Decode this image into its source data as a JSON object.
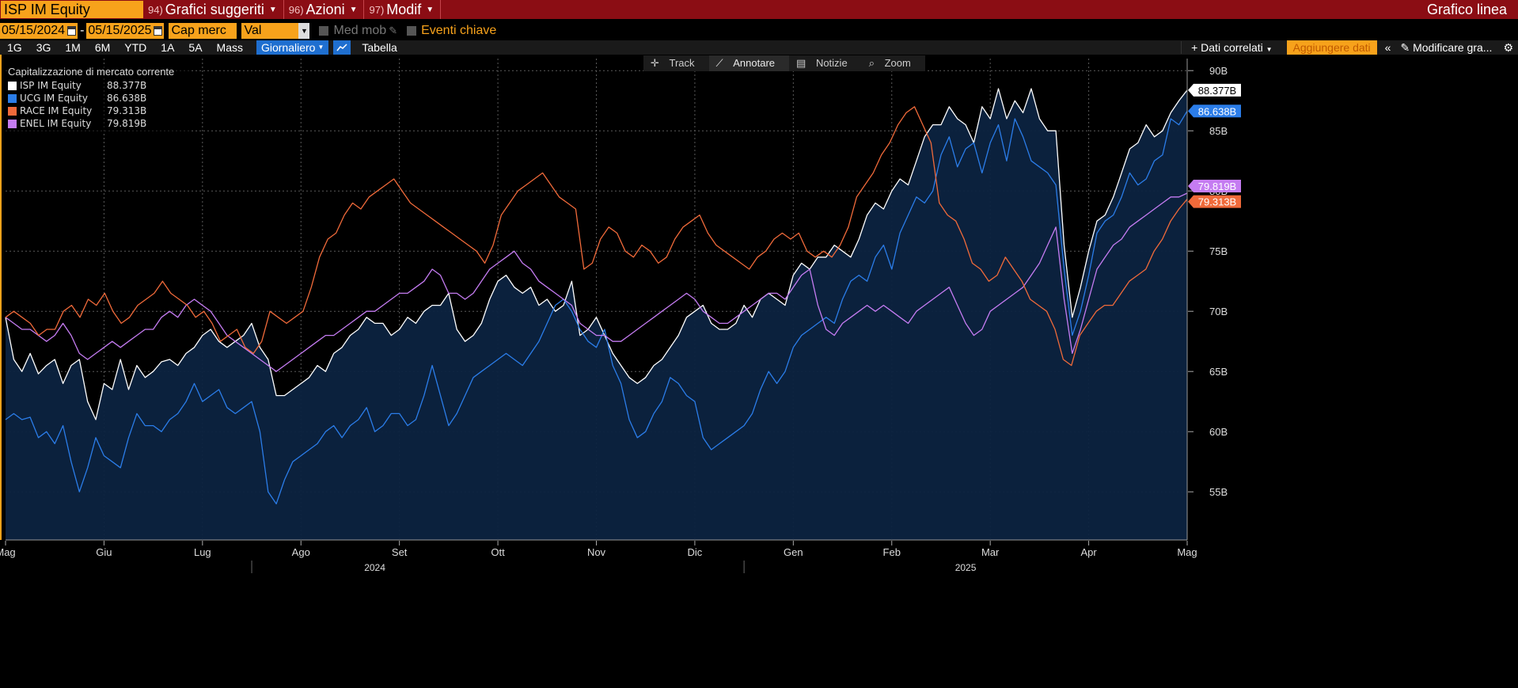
{
  "topbar": {
    "ticker": "ISP IM Equity",
    "menus": [
      {
        "num": "94)",
        "label": "Grafici suggeriti"
      },
      {
        "num": "96)",
        "label": "Azioni"
      },
      {
        "num": "97)",
        "label": "Modif"
      }
    ],
    "right_label": "Grafico linea"
  },
  "controls": {
    "start_date": "05/15/2024",
    "dash": "-",
    "end_date": "05/15/2025",
    "field": "Cap merc",
    "currency": "Val locale",
    "moving_avg": "Med mob",
    "key_events": "Eventi chiave"
  },
  "periods": [
    "1G",
    "3G",
    "1M",
    "6M",
    "YTD",
    "1A",
    "5A",
    "Mass"
  ],
  "frequency": "Giornaliero",
  "table_label": "Tabella",
  "right_tools": {
    "related": "+ Dati correlati",
    "add_data": "Aggiungere dati",
    "modify": "Modificare gra..."
  },
  "tools": [
    "Track",
    "Annotare",
    "Notizie",
    "Zoom"
  ],
  "legend": {
    "title": "Capitalizzazione di mercato corrente",
    "items": [
      {
        "name": "ISP IM Equity",
        "value": "88.377B",
        "color": "#ffffff"
      },
      {
        "name": "UCG IM Equity",
        "value": "86.638B",
        "color": "#2b7de9"
      },
      {
        "name": "RACE IM Equity",
        "value": "79.313B",
        "color": "#f06a3a"
      },
      {
        "name": "ENEL IM Equity",
        "value": "79.819B",
        "color": "#c57cf2"
      }
    ]
  },
  "colors": {
    "accent": "#f7a21b",
    "topbar": "#8b0d14",
    "area": "#0c2340"
  },
  "chart_data": {
    "type": "line",
    "ylim": [
      51,
      91
    ],
    "y_ticks": [
      55,
      60,
      65,
      70,
      75,
      80,
      85,
      90
    ],
    "y_tick_suffix": "B",
    "x_month_labels": [
      "Mag",
      "Giu",
      "Lug",
      "Ago",
      "Set",
      "Ott",
      "Nov",
      "Dic",
      "Gen",
      "Feb",
      "Mar",
      "Apr",
      "Mag"
    ],
    "x_month_positions": [
      0,
      12,
      24,
      36,
      48,
      60,
      72,
      84,
      96,
      108,
      120,
      132,
      144
    ],
    "x_max": 144,
    "year_labels": [
      "2024",
      "2025"
    ],
    "year_positions": [
      45,
      117
    ],
    "year_divider_positions": [
      30,
      90
    ],
    "series": [
      {
        "name": "ISP IM Equity",
        "color": "#ffffff",
        "fill": true,
        "last_label": "88.377B",
        "values": [
          69.5,
          66.0,
          65.0,
          66.5,
          64.8,
          65.5,
          66.0,
          64.0,
          65.5,
          66.0,
          62.5,
          61.0,
          64.0,
          63.5,
          66.0,
          63.5,
          65.5,
          64.5,
          65.0,
          65.8,
          66.0,
          65.5,
          66.5,
          67.0,
          68.0,
          68.5,
          67.5,
          67.0,
          67.5,
          68.0,
          69.0,
          67.0,
          66.0,
          63.0,
          63.0,
          63.5,
          64.0,
          64.5,
          65.5,
          65.0,
          66.5,
          67.0,
          68.0,
          68.5,
          69.5,
          69.0,
          69.0,
          68.0,
          68.5,
          69.5,
          69.0,
          70.0,
          70.5,
          70.5,
          71.5,
          68.5,
          67.5,
          68.0,
          69.0,
          71.0,
          72.5,
          73.0,
          72.0,
          71.5,
          72.0,
          70.5,
          71.0,
          70.0,
          70.5,
          72.5,
          68.0,
          68.5,
          69.5,
          68.0,
          66.5,
          65.5,
          64.5,
          64.0,
          64.5,
          65.5,
          66.0,
          67.0,
          68.0,
          69.5,
          70.0,
          70.5,
          69.0,
          68.5,
          68.5,
          69.0,
          70.5,
          69.5,
          71.0,
          71.5,
          71.0,
          70.5,
          73.0,
          74.0,
          73.5,
          74.5,
          74.5,
          75.5,
          75.0,
          74.5,
          76.0,
          78.0,
          79.0,
          78.5,
          80.0,
          81.0,
          80.5,
          82.5,
          84.5,
          85.5,
          85.5,
          87.0,
          86.0,
          85.5,
          84.0,
          87.0,
          86.0,
          88.5,
          86.0,
          87.5,
          86.5,
          88.5,
          86.0,
          85.0,
          85.0,
          75.5,
          69.5,
          72.0,
          75.0,
          77.5,
          78.0,
          79.5,
          81.5,
          83.5,
          84.0,
          85.5,
          84.5,
          85.0,
          86.5,
          87.5,
          88.377
        ]
      },
      {
        "name": "UCG IM Equity",
        "color": "#2b7de9",
        "fill": false,
        "last_label": "86.638B",
        "values": [
          61.0,
          61.5,
          61.0,
          61.2,
          59.5,
          60.0,
          59.0,
          60.5,
          57.5,
          55.0,
          57.0,
          59.5,
          58.0,
          57.5,
          57.0,
          59.5,
          61.5,
          60.5,
          60.5,
          60.0,
          61.0,
          61.5,
          62.5,
          64.0,
          62.5,
          63.0,
          63.5,
          62.0,
          61.5,
          62.0,
          62.5,
          60.0,
          55.0,
          54.0,
          56.0,
          57.5,
          58.0,
          58.5,
          59.0,
          60.0,
          60.5,
          59.5,
          60.5,
          61.0,
          62.0,
          60.0,
          60.5,
          61.5,
          61.5,
          60.5,
          61.0,
          63.0,
          65.5,
          63.0,
          60.5,
          61.5,
          63.0,
          64.5,
          65.0,
          65.5,
          66.0,
          66.5,
          66.0,
          65.5,
          66.5,
          67.5,
          69.0,
          70.5,
          71.0,
          70.0,
          68.5,
          67.5,
          67.0,
          68.5,
          65.5,
          64.0,
          61.0,
          59.5,
          60.0,
          61.5,
          62.5,
          64.5,
          64.0,
          63.0,
          62.5,
          59.5,
          58.5,
          59.0,
          59.5,
          60.0,
          60.5,
          61.5,
          63.5,
          65.0,
          64.0,
          65.0,
          67.0,
          68.0,
          68.5,
          69.0,
          69.5,
          69.0,
          71.0,
          72.5,
          73.0,
          72.5,
          74.5,
          75.5,
          73.5,
          76.5,
          78.0,
          79.5,
          79.0,
          80.0,
          83.0,
          84.5,
          82.0,
          83.5,
          84.0,
          81.5,
          84.0,
          85.5,
          82.5,
          86.0,
          84.5,
          82.5,
          82.0,
          81.5,
          80.5,
          73.5,
          68.0,
          70.0,
          73.0,
          76.5,
          77.5,
          78.0,
          79.5,
          81.5,
          80.5,
          81.0,
          82.5,
          83.0,
          86.0,
          85.5,
          86.638
        ]
      },
      {
        "name": "RACE IM Equity",
        "color": "#f06a3a",
        "fill": false,
        "last_label": "79.313B",
        "values": [
          69.5,
          70.0,
          69.5,
          69.0,
          68.0,
          68.5,
          68.5,
          70.0,
          70.5,
          69.5,
          71.0,
          70.5,
          71.5,
          70.0,
          69.0,
          69.5,
          70.5,
          71.0,
          71.5,
          72.5,
          71.5,
          71.0,
          70.5,
          69.5,
          70.0,
          69.0,
          67.5,
          68.0,
          68.5,
          67.0,
          66.5,
          67.5,
          70.0,
          69.5,
          69.0,
          69.5,
          70.0,
          72.0,
          74.5,
          76.0,
          76.5,
          78.0,
          79.0,
          78.5,
          79.5,
          80.0,
          80.5,
          81.0,
          80.0,
          79.0,
          78.5,
          78.0,
          77.5,
          77.0,
          76.5,
          76.0,
          75.5,
          75.0,
          74.0,
          75.5,
          78.0,
          79.0,
          80.0,
          80.5,
          81.0,
          81.5,
          80.5,
          79.5,
          79.0,
          78.5,
          73.5,
          74.0,
          76.0,
          77.0,
          76.5,
          75.0,
          74.5,
          75.5,
          75.0,
          74.0,
          74.5,
          76.0,
          77.0,
          77.5,
          78.0,
          76.5,
          75.5,
          75.0,
          74.5,
          74.0,
          73.5,
          74.5,
          75.0,
          76.0,
          76.5,
          76.0,
          76.5,
          75.0,
          74.5,
          75.0,
          74.5,
          75.5,
          77.0,
          79.5,
          80.5,
          81.5,
          83.0,
          84.0,
          85.5,
          86.5,
          87.0,
          85.5,
          84.0,
          79.0,
          78.0,
          77.5,
          76.0,
          74.0,
          73.5,
          72.5,
          73.0,
          74.5,
          73.5,
          72.5,
          71.0,
          70.5,
          70.0,
          68.5,
          66.0,
          65.5,
          68.0,
          69.0,
          70.0,
          70.5,
          70.5,
          71.5,
          72.5,
          73.0,
          73.5,
          75.0,
          76.0,
          77.5,
          78.5,
          79.313
        ]
      },
      {
        "name": "ENEL IM Equity",
        "color": "#c57cf2",
        "fill": false,
        "last_label": "79.819B",
        "values": [
          69.5,
          69.0,
          68.5,
          68.5,
          68.0,
          67.5,
          68.0,
          69.0,
          68.0,
          66.5,
          66.0,
          66.5,
          67.0,
          67.5,
          67.0,
          67.5,
          68.0,
          68.5,
          68.5,
          69.5,
          70.0,
          69.5,
          70.5,
          71.0,
          70.5,
          70.0,
          69.0,
          68.0,
          67.5,
          67.0,
          66.5,
          66.0,
          65.5,
          65.0,
          65.5,
          66.0,
          66.5,
          67.0,
          67.5,
          68.0,
          68.0,
          68.5,
          69.0,
          69.5,
          70.0,
          70.0,
          70.5,
          71.0,
          71.5,
          71.5,
          72.0,
          72.5,
          73.5,
          73.0,
          71.5,
          71.5,
          71.0,
          71.5,
          72.5,
          73.5,
          74.0,
          74.5,
          75.0,
          74.0,
          73.5,
          72.5,
          72.0,
          71.5,
          71.0,
          70.5,
          69.0,
          68.5,
          68.0,
          68.0,
          67.5,
          67.5,
          68.0,
          68.5,
          69.0,
          69.5,
          70.0,
          70.5,
          71.0,
          71.5,
          71.0,
          70.0,
          69.5,
          69.0,
          69.0,
          69.5,
          70.0,
          70.5,
          71.0,
          71.5,
          71.5,
          71.0,
          72.0,
          73.0,
          73.5,
          70.5,
          68.5,
          68.0,
          69.0,
          69.5,
          70.0,
          70.5,
          70.0,
          70.5,
          70.0,
          69.5,
          69.0,
          70.0,
          70.5,
          71.0,
          71.5,
          72.0,
          70.5,
          69.0,
          68.0,
          68.5,
          70.0,
          70.5,
          71.0,
          71.5,
          72.0,
          73.0,
          74.0,
          75.5,
          77.0,
          71.0,
          66.5,
          68.5,
          71.0,
          73.5,
          74.5,
          75.5,
          76.0,
          77.0,
          77.5,
          78.0,
          78.5,
          79.0,
          79.5,
          79.5,
          79.819
        ]
      }
    ]
  }
}
